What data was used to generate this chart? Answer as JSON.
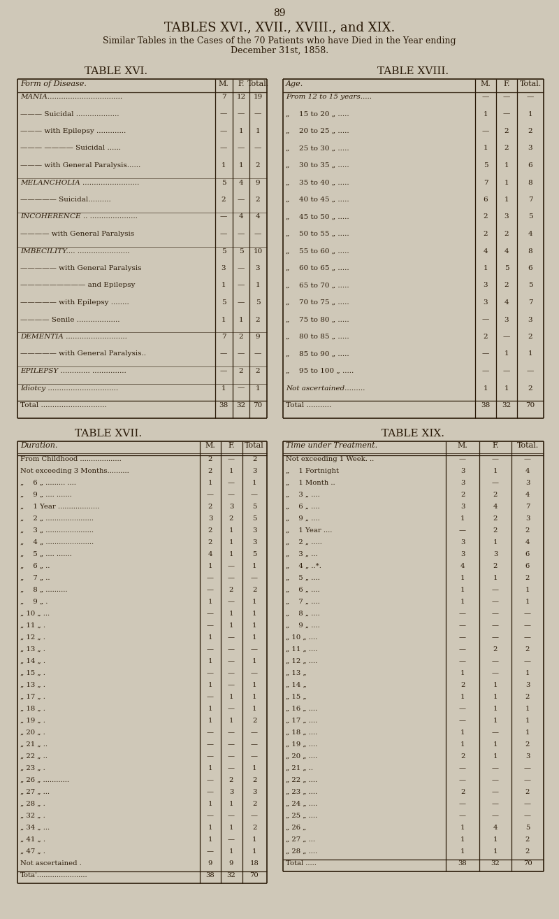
{
  "page_number": "89",
  "main_title": "TABLES XVI., XVII., XVIII., and XIX.",
  "subtitle_line1": "Similar Tables in the Cases of the 70 Patients who have Died in the Year ending",
  "subtitle_line2": "December 31st, 1858.",
  "bg_color": "#cfc8b8",
  "text_color": "#2a1a08",
  "table16_title": "TABLE XVI.",
  "table16_header": [
    "Form of Disease.",
    "M.",
    "F.",
    "Total."
  ],
  "table16_rows": [
    [
      "MANIA.................................",
      "7",
      "12",
      "19"
    ],
    [
      "——— Suicidal ...................",
      "—",
      "—",
      "—"
    ],
    [
      "——— with Epilepsy .............",
      "—",
      "1",
      "1"
    ],
    [
      "——— ———— Suicidal ......",
      "—",
      "—",
      "—"
    ],
    [
      "——— with General Paralysis......",
      "1",
      "1",
      "2"
    ],
    [
      "MELANCHOLIA .........................",
      "5",
      "4",
      "9"
    ],
    [
      "————— Suicidal..........",
      "2",
      "—",
      "2"
    ],
    [
      "INCOHERENCE .. .....................",
      "—",
      "4",
      "4"
    ],
    [
      "———— with General Paralysis",
      "—",
      "—",
      "—"
    ],
    [
      "IMBECILITY.... .......................",
      "5",
      "5",
      "10"
    ],
    [
      "————— with General Paralysis",
      "3",
      "—",
      "3"
    ],
    [
      "————————— and Epilepsy",
      "1",
      "—",
      "1"
    ],
    [
      "————— with Epilepsy ........",
      "5",
      "—",
      "5"
    ],
    [
      "———— Senile ...................",
      "1",
      "1",
      "2"
    ],
    [
      "DEMENTIA ...........................",
      "7",
      "2",
      "9"
    ],
    [
      "————— with General Paralysis..",
      "—",
      "—",
      "—"
    ],
    [
      "EPILEPSY ............. ...............",
      "—",
      "2",
      "2"
    ],
    [
      "Idiotcy ...............................",
      "1",
      "—",
      "1"
    ],
    [
      "Total .............................",
      "38",
      "32",
      "70"
    ]
  ],
  "table17_title": "TABLE XVII.",
  "table17_header": [
    "Duration.",
    "M.",
    "F.",
    "Total"
  ],
  "table17_rows": [
    [
      "From Childhood ...................",
      "2",
      "—",
      "2"
    ],
    [
      "Not exceeding 3 Months..........",
      "2",
      "1",
      "3"
    ],
    [
      "„  6 „ ......... ....",
      "1",
      "—",
      "1"
    ],
    [
      "„  9 „ .... .......",
      "—",
      "—",
      "—"
    ],
    [
      "„  1 Year ...................",
      "2",
      "3",
      "5"
    ],
    [
      "„  2 „ ......................",
      "3",
      "2",
      "5"
    ],
    [
      "„  3 „ ......................",
      "2",
      "1",
      "3"
    ],
    [
      "„  4 „ ......................",
      "2",
      "1",
      "3"
    ],
    [
      "„  5 „ .... .......",
      "4",
      "1",
      "5"
    ],
    [
      "„  6 „ ..",
      "1",
      "—",
      "1"
    ],
    [
      "„  7 „ ..",
      "—",
      "—",
      "—"
    ],
    [
      "„  8 „ ..........",
      "—",
      "2",
      "2"
    ],
    [
      "„  9 „ .",
      "1",
      "—",
      "1"
    ],
    [
      "„ 10 „ ...",
      "—",
      "1",
      "1"
    ],
    [
      "„ 11 „ .",
      "—",
      "1",
      "1"
    ],
    [
      "„ 12 „ .",
      "1",
      "—",
      "1"
    ],
    [
      "„ 13 „ .",
      "—",
      "—",
      "—"
    ],
    [
      "„ 14 „ .",
      "1",
      "—",
      "1"
    ],
    [
      "„ 15 „ .",
      "—",
      "—",
      "—"
    ],
    [
      "„ 13 „ .",
      "1",
      "—",
      "1"
    ],
    [
      "„ 17 „ .",
      "—",
      "1",
      "1"
    ],
    [
      "„ 18 „ .",
      "1",
      "—",
      "1"
    ],
    [
      "„ 19 „ .",
      "1",
      "1",
      "2"
    ],
    [
      "„ 20 „ .",
      "—",
      "—",
      "—"
    ],
    [
      "„ 21 „ ..",
      "—",
      "—",
      "—"
    ],
    [
      "„ 22 „ ..",
      "—",
      "—",
      "—"
    ],
    [
      "„ 23 „ .",
      "1",
      "—",
      "1"
    ],
    [
      "„ 26 „ ............",
      "—",
      "2",
      "2"
    ],
    [
      "„ 27 „ ...",
      "—",
      "3",
      "3"
    ],
    [
      "„ 28 „ .",
      "1",
      "1",
      "2"
    ],
    [
      "„ 32 „ .",
      "—",
      "—",
      "—"
    ],
    [
      "„ 34 „ ...",
      "1",
      "1",
      "2"
    ],
    [
      "„ 41 „ .",
      "1",
      "—",
      "1"
    ],
    [
      "„ 47 „ .",
      "—",
      "1",
      "1"
    ],
    [
      "Not ascertained .",
      "9",
      "9",
      "18"
    ],
    [
      "Tota'.......................",
      "38",
      "32",
      "70"
    ]
  ],
  "table18_title": "TABLE XVIII.",
  "table18_header": [
    "Age.",
    "M.",
    "F.",
    "Total."
  ],
  "table18_rows": [
    [
      "From 12 to 15 years.....",
      "—",
      "—",
      "—"
    ],
    [
      "„  15 to 20 „ .....",
      "1",
      "—",
      "1"
    ],
    [
      "„  20 to 25 „ .....",
      "—",
      "2",
      "2"
    ],
    [
      "„  25 to 30 „ .....",
      "1",
      "2",
      "3"
    ],
    [
      "„  30 to 35 „ .....",
      "5",
      "1",
      "6"
    ],
    [
      "„  35 to 40 „ .....",
      "7",
      "1",
      "8"
    ],
    [
      "„  40 to 45 „ .....",
      "6",
      "1",
      "7"
    ],
    [
      "„  45 to 50 „ .....",
      "2",
      "3",
      "5"
    ],
    [
      "„  50 to 55 „ .....",
      "2",
      "2",
      "4"
    ],
    [
      "„  55 to 60 „ .....",
      "4",
      "4",
      "8"
    ],
    [
      "„  60 to 65 „ .....",
      "1",
      "5",
      "6"
    ],
    [
      "„  65 to 70 „ .....",
      "3",
      "2",
      "5"
    ],
    [
      "„  70 to 75 „ .....",
      "3",
      "4",
      "7"
    ],
    [
      "„  75 to 80 „ .....",
      "—",
      "3",
      "3"
    ],
    [
      "„  80 to 85 „ .....",
      "2",
      "—",
      "2"
    ],
    [
      "„  85 to 90 „ .....",
      "—",
      "1",
      "1"
    ],
    [
      "„  95 to 100 „ .....",
      "—",
      "—",
      "—"
    ],
    [
      "Not ascertained.........",
      "1",
      "1",
      "2"
    ],
    [
      "Total ...........",
      "38",
      "32",
      "70"
    ]
  ],
  "table19_title": "TABLE XIX.",
  "table19_header": [
    "Time under Treatment.",
    "M.",
    "F.",
    "Total."
  ],
  "table19_rows": [
    [
      "Not exceeding 1 Week. ..",
      "—",
      "—",
      "—"
    ],
    [
      "„  1 Fortnight",
      "3",
      "1",
      "4"
    ],
    [
      "„  1 Month ..",
      "3",
      "—",
      "3"
    ],
    [
      "„  3 „ ....",
      "2",
      "2",
      "4"
    ],
    [
      "„  6 „ ....",
      "3",
      "4",
      "7"
    ],
    [
      "„  9 „ ....",
      "1",
      "2",
      "3"
    ],
    [
      "„  1 Year ....",
      "—",
      "2",
      "2"
    ],
    [
      "„  2 „ .....",
      "3",
      "1",
      "4"
    ],
    [
      "„  3 „ ...",
      "3",
      "3",
      "6"
    ],
    [
      "„  4 „ ..*.",
      "4",
      "2",
      "6"
    ],
    [
      "„  5 „ ....",
      "1",
      "1",
      "2"
    ],
    [
      "„  6 „ ....",
      "1",
      "—",
      "1"
    ],
    [
      "„  7 „ ....",
      "1",
      "—",
      "1"
    ],
    [
      "„  8 „ ....",
      "—",
      "—",
      "—"
    ],
    [
      "„  9 „ ....",
      "—",
      "—",
      "—"
    ],
    [
      "„ 10 „ ....",
      "—",
      "—",
      "—"
    ],
    [
      "„ 11 „ ....",
      "—",
      "2",
      "2"
    ],
    [
      "„ 12 „ ....",
      "—",
      "—",
      "—"
    ],
    [
      "„ 13 „",
      "1",
      "—",
      "1"
    ],
    [
      "„ 14 „",
      "2",
      "1",
      "3"
    ],
    [
      "„ 15 „",
      "1",
      "1",
      "2"
    ],
    [
      "„ 16 „ ....",
      "—",
      "1",
      "1"
    ],
    [
      "„ 17 „ ....",
      "—",
      "1",
      "1"
    ],
    [
      "„ 18 „ ....",
      "1",
      "—",
      "1"
    ],
    [
      "„ 19 „ ....",
      "1",
      "1",
      "2"
    ],
    [
      "„ 20 „ ....",
      "2",
      "1",
      "3"
    ],
    [
      "„ 21 „ ..",
      "—",
      "—",
      "—"
    ],
    [
      "„ 22 „ ....",
      "—",
      "—",
      "—"
    ],
    [
      "„ 23 „ ....",
      "2",
      "—",
      "2"
    ],
    [
      "„ 24 „ ....",
      "—",
      "—",
      "—"
    ],
    [
      "„ 25 „ ....",
      "—",
      "—",
      "—"
    ],
    [
      "„ 26 „",
      "1",
      "4",
      "5"
    ],
    [
      "„ 27 „ ...",
      "1",
      "1",
      "2"
    ],
    [
      "„ 28 „ ....",
      "1",
      "1",
      "2"
    ],
    [
      "Total .....",
      "38",
      "32",
      "70"
    ]
  ]
}
